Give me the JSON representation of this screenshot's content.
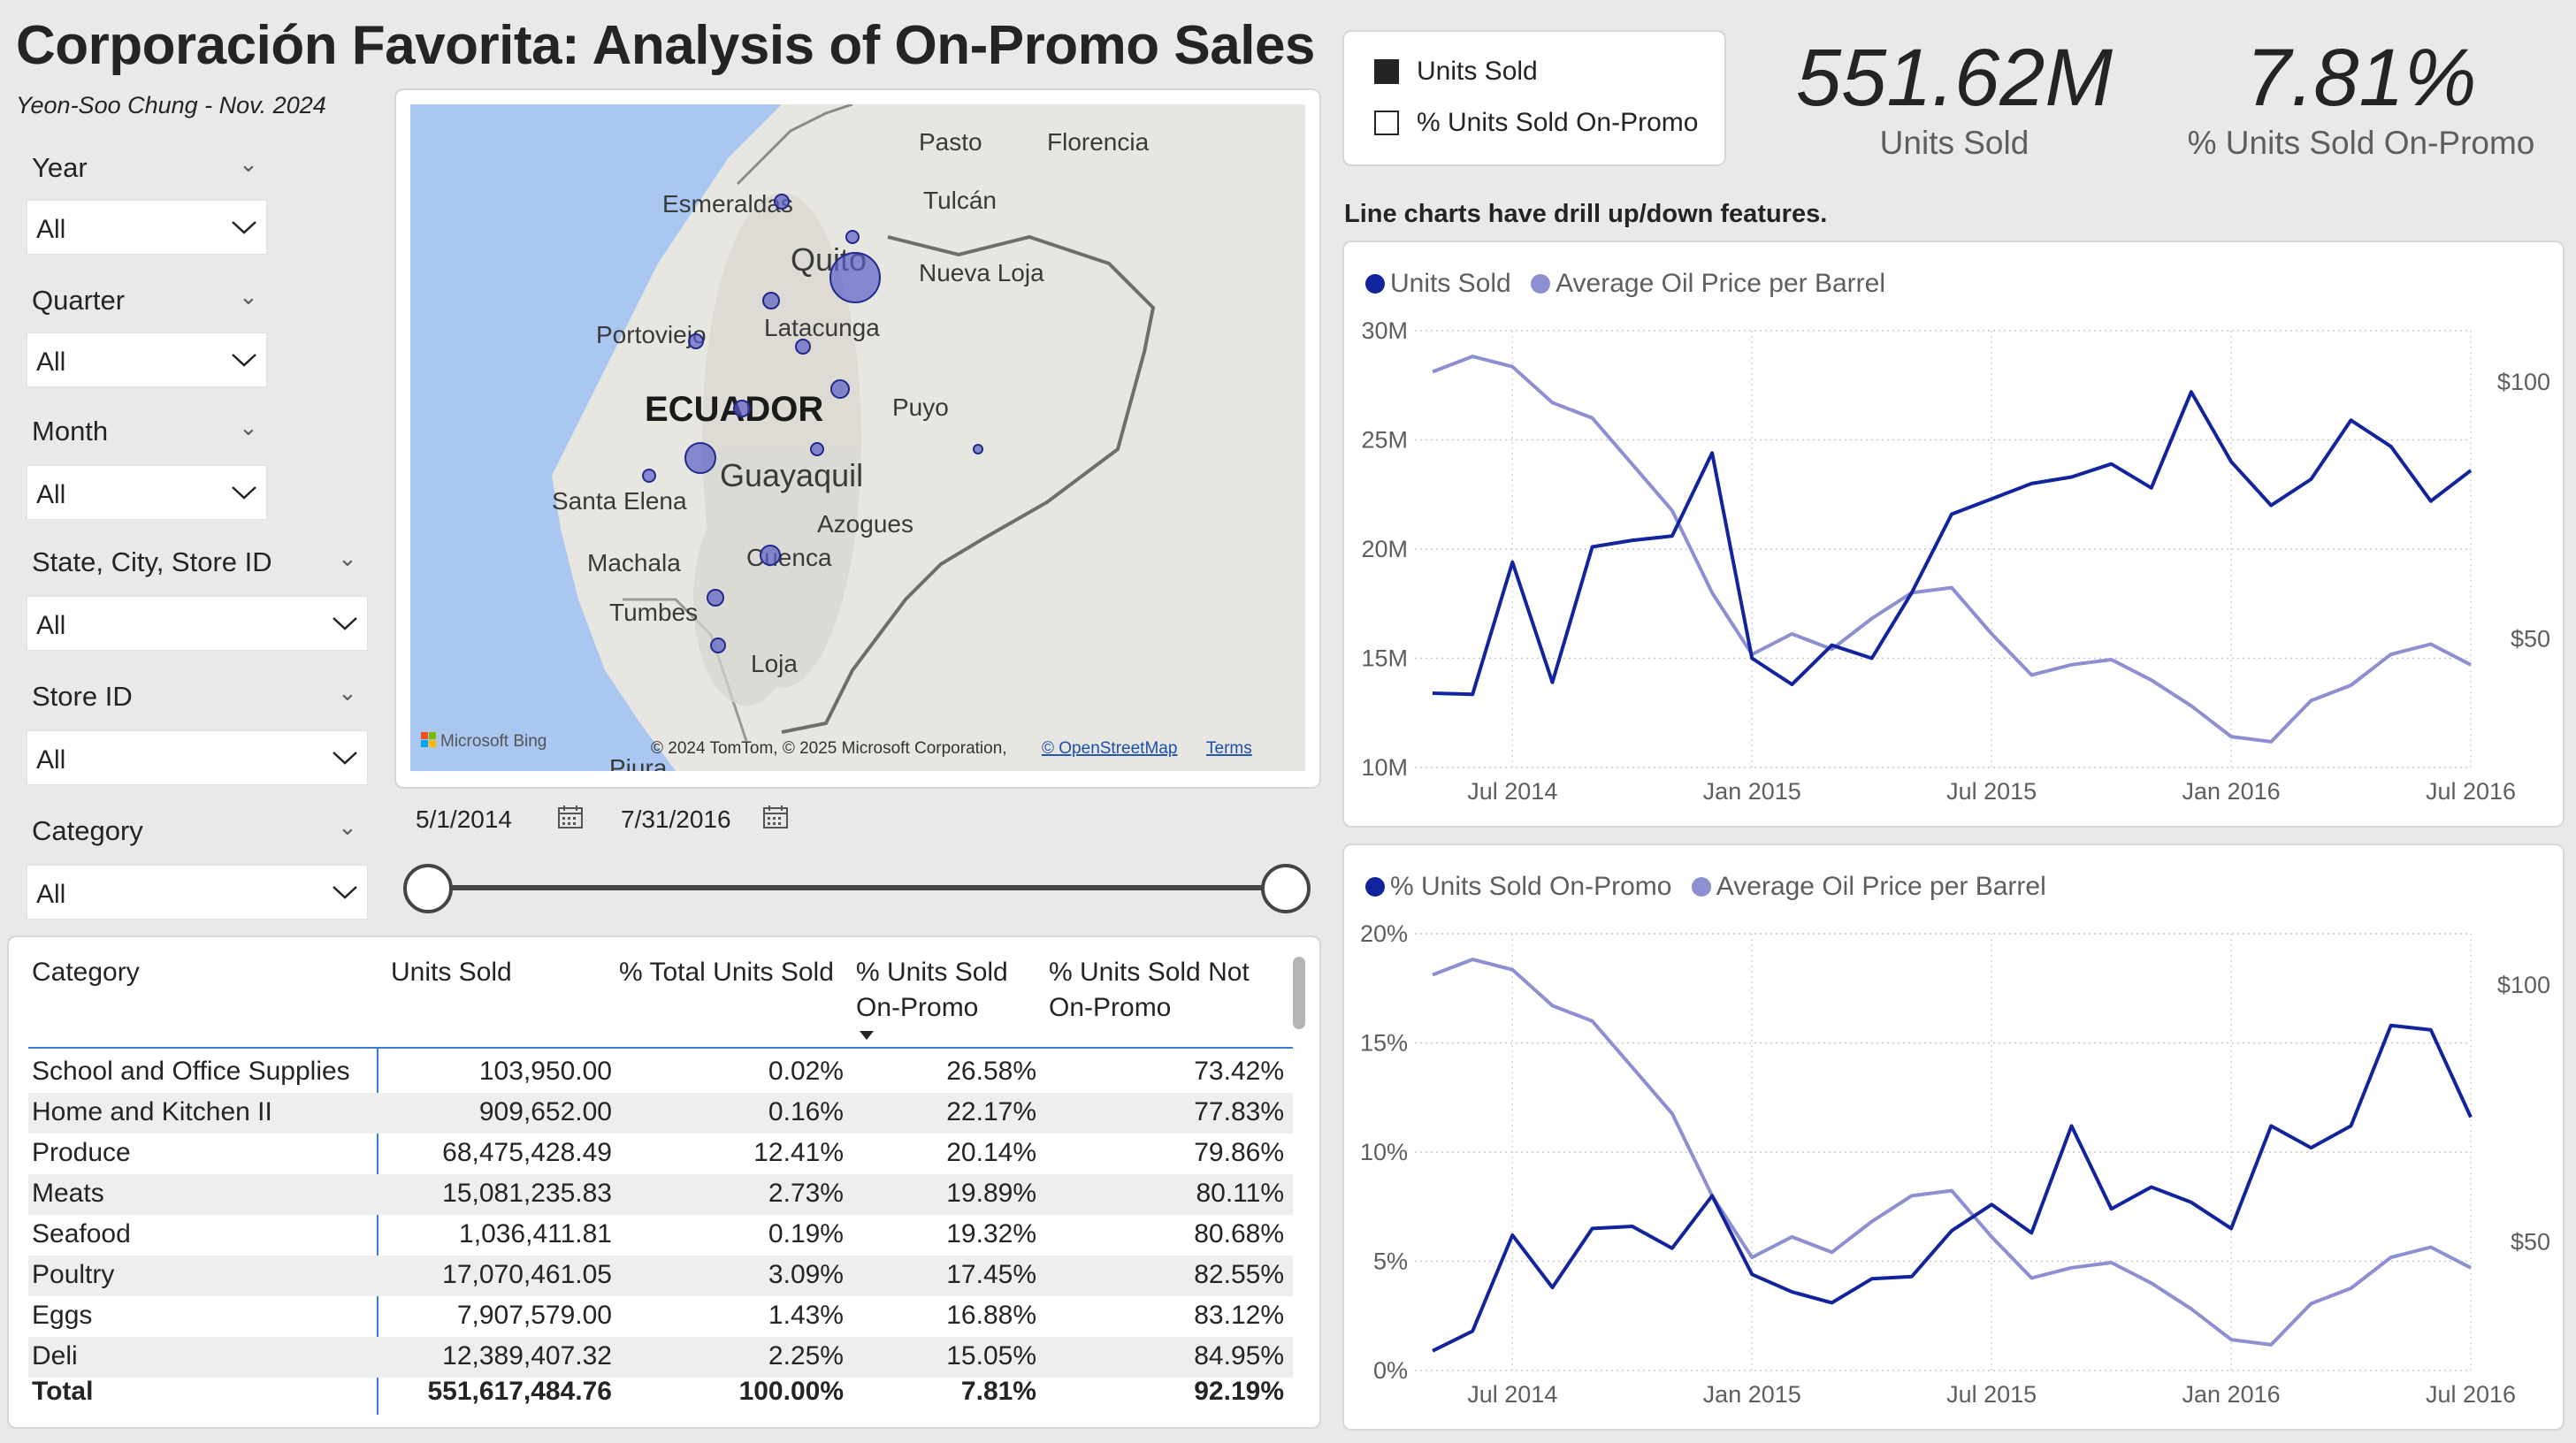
{
  "header": {
    "title": "Corporación Favorita: Analysis of On-Promo Sales",
    "author": "Yeon-Soo Chung - Nov. 2024"
  },
  "slicers": [
    {
      "label": "Year",
      "value": "All"
    },
    {
      "label": "Quarter",
      "value": "All"
    },
    {
      "label": "Month",
      "value": "All"
    },
    {
      "label": "State, City, Store ID",
      "value": "All"
    },
    {
      "label": "Store ID",
      "value": "All"
    },
    {
      "label": "Category",
      "value": "All"
    }
  ],
  "map": {
    "country_label": "ECUADOR",
    "cities": [
      "Pasto",
      "Florencia",
      "Esmeraldas",
      "Tulcán",
      "Quito",
      "Nueva Loja",
      "Portoviejo",
      "Latacunga",
      "Puyo",
      "Santa Elena",
      "Guayaquil",
      "Azogues",
      "Machala",
      "Cuenca",
      "Tumbes",
      "Loja",
      "Piura"
    ],
    "provider": "Microsoft Bing",
    "copyright": "© 2024 TomTom, © 2025 Microsoft Corporation,",
    "osm_link": "© OpenStreetMap",
    "terms_link": "Terms"
  },
  "date_range": {
    "start": "5/1/2014",
    "end": "7/31/2016"
  },
  "measure_toggle": {
    "options": [
      {
        "label": "Units Sold",
        "selected": true
      },
      {
        "label": "% Units Sold On-Promo",
        "selected": false
      }
    ]
  },
  "kpis": [
    {
      "value": "551.62M",
      "label": "Units Sold"
    },
    {
      "value": "7.81%",
      "label": "% Units Sold On-Promo"
    }
  ],
  "drill_note": "Line charts have drill up/down features.",
  "table": {
    "headers": [
      "Category",
      "Units Sold",
      "% Total Units Sold",
      "% Units Sold On-Promo",
      "% Units Sold Not On-Promo"
    ],
    "sort_column": "% Units Sold On-Promo",
    "rows": [
      [
        "School and Office Supplies",
        "103,950.00",
        "0.02%",
        "26.58%",
        "73.42%"
      ],
      [
        "Home and Kitchen II",
        "909,652.00",
        "0.16%",
        "22.17%",
        "77.83%"
      ],
      [
        "Produce",
        "68,475,428.49",
        "12.41%",
        "20.14%",
        "79.86%"
      ],
      [
        "Meats",
        "15,081,235.83",
        "2.73%",
        "19.89%",
        "80.11%"
      ],
      [
        "Seafood",
        "1,036,411.81",
        "0.19%",
        "19.32%",
        "80.68%"
      ],
      [
        "Poultry",
        "17,070,461.05",
        "3.09%",
        "17.45%",
        "82.55%"
      ],
      [
        "Eggs",
        "7,907,579.00",
        "1.43%",
        "16.88%",
        "83.12%"
      ],
      [
        "Deli",
        "12,389,407.32",
        "2.25%",
        "15.05%",
        "84.95%"
      ]
    ],
    "total": [
      "Total",
      "551,617,484.76",
      "100.00%",
      "7.81%",
      "92.19%"
    ]
  },
  "colors": {
    "primary_series": "#12239e",
    "oil_series": "#8c8fd0"
  },
  "chart_data": [
    {
      "type": "line",
      "x": [
        "2014-05",
        "2014-06",
        "2014-07",
        "2014-08",
        "2014-09",
        "2014-10",
        "2014-11",
        "2014-12",
        "2015-01",
        "2015-02",
        "2015-03",
        "2015-04",
        "2015-05",
        "2015-06",
        "2015-07",
        "2015-08",
        "2015-09",
        "2015-10",
        "2015-11",
        "2015-12",
        "2016-01",
        "2016-02",
        "2016-03",
        "2016-04",
        "2016-05",
        "2016-06",
        "2016-07"
      ],
      "x_tick_labels": [
        "Jul 2014",
        "Jan 2015",
        "Jul 2015",
        "Jan 2016",
        "Jul 2016"
      ],
      "series": [
        {
          "name": "Units Sold",
          "axis": "left",
          "values": [
            13.4,
            13.35,
            19.4,
            13.9,
            20.1,
            20.4,
            20.6,
            24.4,
            15.0,
            13.8,
            15.6,
            15.0,
            18.0,
            21.6,
            22.3,
            23.0,
            23.3,
            23.9,
            22.8,
            27.2,
            24.0,
            22.0,
            23.2,
            25.9,
            24.7,
            22.2,
            23.6
          ]
        },
        {
          "name": "Average Oil Price per Barrel",
          "axis": "right",
          "values": [
            102,
            105,
            103,
            96,
            93,
            84,
            75,
            59,
            47,
            51,
            48,
            54,
            59,
            60,
            51,
            43,
            45,
            46,
            42,
            37,
            31,
            30,
            38,
            41,
            47,
            49,
            45
          ]
        }
      ],
      "ylim_left": [
        10,
        30
      ],
      "y_ticks_left": [
        "10M",
        "15M",
        "20M",
        "25M",
        "30M"
      ],
      "y_ticks_right": [
        "$50",
        "$100"
      ],
      "legend": "top-left",
      "grid": true
    },
    {
      "type": "line",
      "x": [
        "2014-05",
        "2014-06",
        "2014-07",
        "2014-08",
        "2014-09",
        "2014-10",
        "2014-11",
        "2014-12",
        "2015-01",
        "2015-02",
        "2015-03",
        "2015-04",
        "2015-05",
        "2015-06",
        "2015-07",
        "2015-08",
        "2015-09",
        "2015-10",
        "2015-11",
        "2015-12",
        "2016-01",
        "2016-02",
        "2016-03",
        "2016-04",
        "2016-05",
        "2016-06",
        "2016-07"
      ],
      "x_tick_labels": [
        "Jul 2014",
        "Jan 2015",
        "Jul 2015",
        "Jan 2016",
        "Jul 2016"
      ],
      "series": [
        {
          "name": "% Units Sold On-Promo",
          "axis": "left",
          "values": [
            0.9,
            1.8,
            6.2,
            3.8,
            6.5,
            6.6,
            5.6,
            8.0,
            4.4,
            3.6,
            3.1,
            4.2,
            4.3,
            6.4,
            7.6,
            6.3,
            11.2,
            7.4,
            8.4,
            7.7,
            6.5,
            11.2,
            10.2,
            11.2,
            15.8,
            15.6,
            11.6
          ]
        },
        {
          "name": "Average Oil Price per Barrel",
          "axis": "right",
          "values": [
            102,
            105,
            103,
            96,
            93,
            84,
            75,
            59,
            47,
            51,
            48,
            54,
            59,
            60,
            51,
            43,
            45,
            46,
            42,
            37,
            31,
            30,
            38,
            41,
            47,
            49,
            45
          ]
        }
      ],
      "ylim_left": [
        0,
        20
      ],
      "y_ticks_left": [
        "0%",
        "5%",
        "10%",
        "15%",
        "20%"
      ],
      "y_ticks_right": [
        "$50",
        "$100"
      ],
      "legend": "top-left",
      "grid": true
    }
  ]
}
